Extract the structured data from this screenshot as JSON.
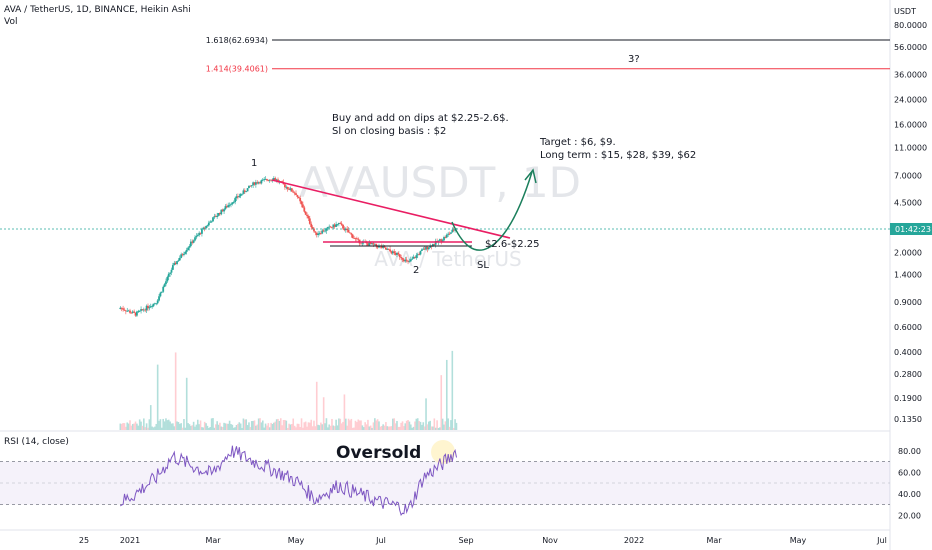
{
  "header": {
    "symbol": "AVA / TetherUS, 1D, BINANCE, Heikin Ashi",
    "volume_label": "Vol",
    "watermark_title": "AVAUSDT, 1D",
    "watermark_subtitle": "AVA / TetherUS"
  },
  "price_axis": {
    "unit": "USDT",
    "ticks": [
      "120.0000",
      "80.0000",
      "56.0000",
      "36.0000",
      "24.0000",
      "16.0000",
      "11.0000",
      "7.0000",
      "4.5000",
      "2.0000",
      "1.4000",
      "0.9000",
      "0.6000",
      "0.4000",
      "0.2800",
      "0.1900",
      "0.1350"
    ],
    "current_label": "01:42:23",
    "current_tag_color": "#26a69a"
  },
  "fib_levels": [
    {
      "label": "1.618(62.6934)",
      "price": 62.6934,
      "color": "#131722"
    },
    {
      "label": "1.414(39.4061)",
      "price": 39.4061,
      "color": "#f23645"
    }
  ],
  "annotations": {
    "plan_line1": "Buy and add on dips at $2.25-2.6$.",
    "plan_line2": "Sl on closing basis : $2",
    "target_line1": "Target : $6, $9.",
    "target_line2": "Long term : $15, $28, $39, $62",
    "support_label": "$2.6-$2.25",
    "sl_label": "SL",
    "wave1": "1",
    "wave2": "2",
    "wave3": "3?",
    "oversold": "Oversold"
  },
  "rsi": {
    "title": "RSI (14, close)",
    "ticks": [
      "80.00",
      "60.00",
      "40.00",
      "20.00"
    ],
    "band_upper": 70,
    "band_lower": 30,
    "band_color": "#7e57c2"
  },
  "time_axis": {
    "labels": [
      "25",
      "2021",
      "Mar",
      "May",
      "Jul",
      "Sep",
      "Nov",
      "2022",
      "Mar",
      "May",
      "Jul"
    ]
  },
  "colors": {
    "up": "#26a69a",
    "down": "#ef5350",
    "trendline": "#e91e63",
    "arrow": "#1b7f5c",
    "rsi_line": "#7e57c2"
  },
  "chart_data": {
    "type": "candlestick",
    "title": "AVA / TetherUS, 1D, BINANCE, Heikin Ashi",
    "y_scale": "log",
    "x": [
      "2020-12-25",
      "2021-01-05",
      "2021-01-20",
      "2021-02-01",
      "2021-02-15",
      "2021-03-01",
      "2021-03-15",
      "2021-04-01",
      "2021-04-15",
      "2021-05-01",
      "2021-05-15",
      "2021-06-01",
      "2021-06-15",
      "2021-07-01",
      "2021-07-15",
      "2021-07-21",
      "2021-08-01",
      "2021-08-15",
      "2021-08-25"
    ],
    "close": [
      0.82,
      0.74,
      0.9,
      1.6,
      2.4,
      3.4,
      4.5,
      6.2,
      6.7,
      5.2,
      2.7,
      3.2,
      2.4,
      2.2,
      1.9,
      1.7,
      2.1,
      2.5,
      3.0
    ],
    "rsi": [
      32,
      40,
      55,
      75,
      66,
      58,
      80,
      70,
      62,
      52,
      35,
      48,
      40,
      32,
      28,
      24,
      55,
      68,
      80
    ],
    "fib_levels": [
      {
        "ratio": 1.618,
        "price": 62.6934
      },
      {
        "ratio": 1.414,
        "price": 39.4061
      }
    ],
    "support_zone": [
      2.25,
      2.6
    ],
    "stop_loss": 2,
    "targets": [
      6,
      9
    ],
    "long_term_targets": [
      15,
      28,
      39,
      62
    ],
    "rsi_band": [
      30,
      70
    ],
    "rsi_ylim": [
      10,
      90
    ]
  }
}
